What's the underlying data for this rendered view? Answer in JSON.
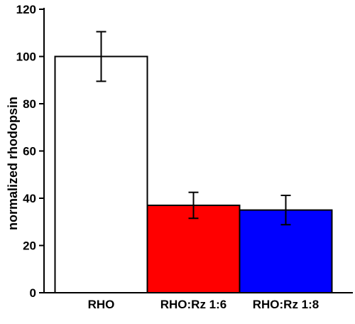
{
  "chart_data": {
    "type": "bar",
    "categories": [
      "RHO",
      "RHO:Rz 1:6",
      "RHO:Rz 1:8"
    ],
    "values": [
      100,
      37,
      35
    ],
    "errors": [
      10.5,
      5.5,
      6.2
    ],
    "bar_colors": [
      "#ffffff",
      "#ff0000",
      "#0000ff"
    ],
    "ylabel": "normalized rhodopsin",
    "xlabel": "",
    "ylim": [
      0,
      120
    ],
    "yticks": [
      0,
      20,
      40,
      60,
      80,
      100,
      120
    ],
    "grid": false
  }
}
